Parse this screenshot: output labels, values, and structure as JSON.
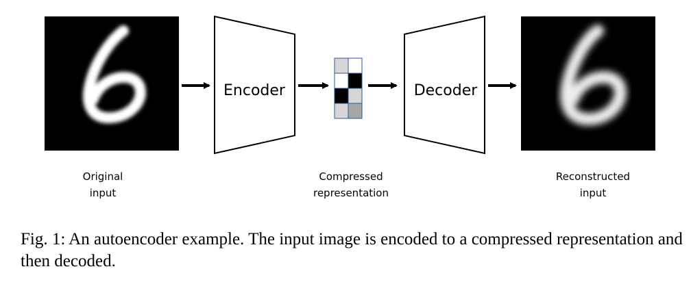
{
  "diagram": {
    "input_image": {
      "digit": "6",
      "label_line1": "Original",
      "label_line2": "input"
    },
    "encoder": {
      "label": "Encoder"
    },
    "code": {
      "label_line1": "Compressed",
      "label_line2": "representation",
      "cells": [
        [
          "#d6d6d6",
          "#ffffff"
        ],
        [
          "#ffffff",
          "#000000"
        ],
        [
          "#000000",
          "#d6d6d6"
        ],
        [
          "#d6d6d6",
          "#a6a6a6"
        ]
      ],
      "border_color": "#2f5597"
    },
    "decoder": {
      "label": "Decoder"
    },
    "output_image": {
      "digit": "6",
      "label_line1": "Reconstructed",
      "label_line2": "input"
    }
  },
  "caption": "Fig. 1: An autoencoder example. The input image is encoded to a compressed representation and then decoded."
}
